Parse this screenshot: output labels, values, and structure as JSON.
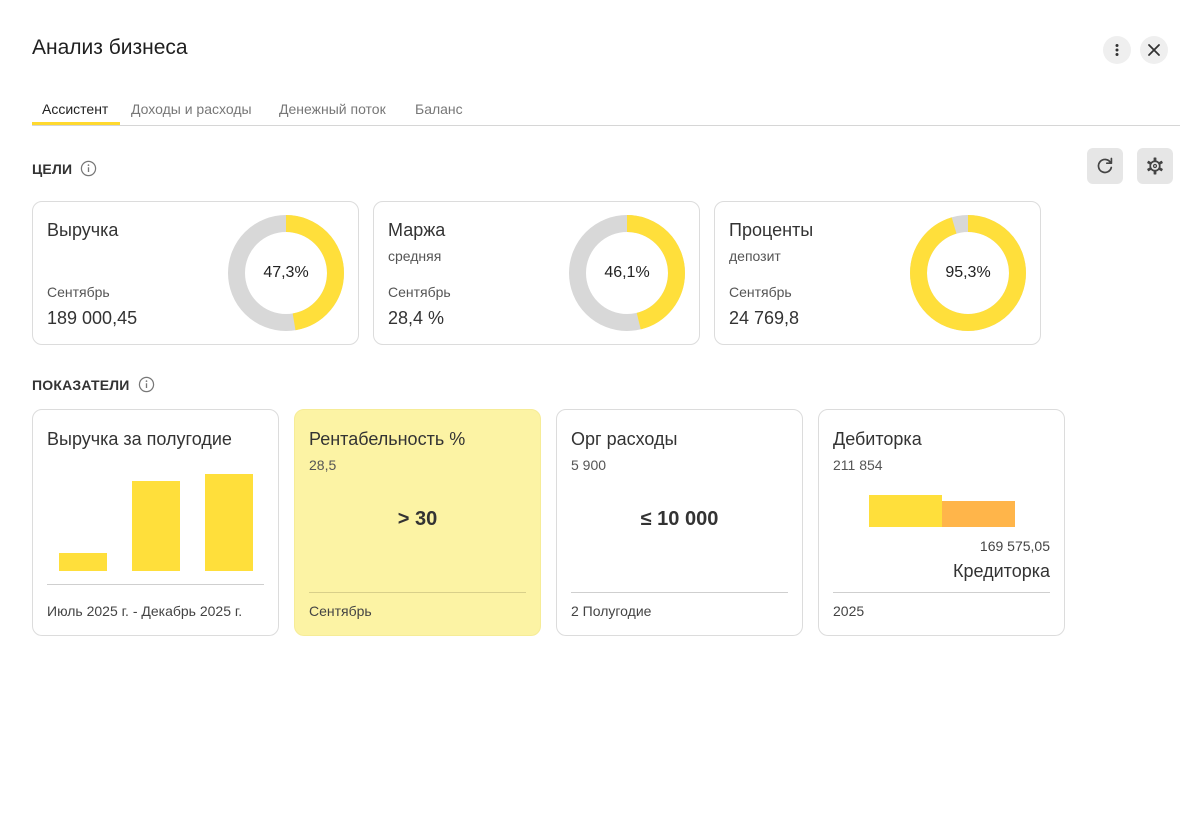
{
  "header": {
    "title": "Анализ бизнеса"
  },
  "tabs": [
    {
      "label": "Ассистент",
      "active": true
    },
    {
      "label": "Доходы и расходы",
      "active": false
    },
    {
      "label": "Денежный поток",
      "active": false
    },
    {
      "label": "Баланс",
      "active": false
    }
  ],
  "goals": {
    "label": "ЦЕЛИ",
    "cards": [
      {
        "title": "Выручка",
        "subtitle": "",
        "month": "Сентябрь",
        "value": "189 000,45",
        "percent_label": "47,3%",
        "percent": 47.3
      },
      {
        "title": "Маржа",
        "subtitle": "средняя",
        "month": "Сентябрь",
        "value": "28,4 %",
        "percent_label": "46,1%",
        "percent": 46.1
      },
      {
        "title": "Проценты",
        "subtitle": "депозит",
        "month": "Сентябрь",
        "value": "24 769,8",
        "percent_label": "95,3%",
        "percent": 95.3
      }
    ]
  },
  "indicators": {
    "label": "ПОКАЗАТЕЛИ",
    "revenue_half": {
      "title": "Выручка за полугодие",
      "footer": "Июль 2025 г. - Декабрь 2025 г.",
      "bar_levels": [
        0.2,
        1.0,
        1.08
      ]
    },
    "profitability": {
      "title": "Рентабельность %",
      "value": "28,5",
      "target": "> 30",
      "footer": "Сентябрь"
    },
    "org_expenses": {
      "title": "Орг расходы",
      "value": "5 900",
      "target": "≤ 10 000",
      "footer": "2 Полугодие"
    },
    "debt": {
      "title": "Дебиторка",
      "value": "211 854",
      "creditor_value": "169 575,05",
      "creditor_label": "Кредиторка",
      "footer": "2025"
    }
  },
  "colors": {
    "accent": "#ffdf3b",
    "creditor": "#ffb54a",
    "track": "#d8d8d8",
    "highlight_bg": "#fcf3a4"
  }
}
